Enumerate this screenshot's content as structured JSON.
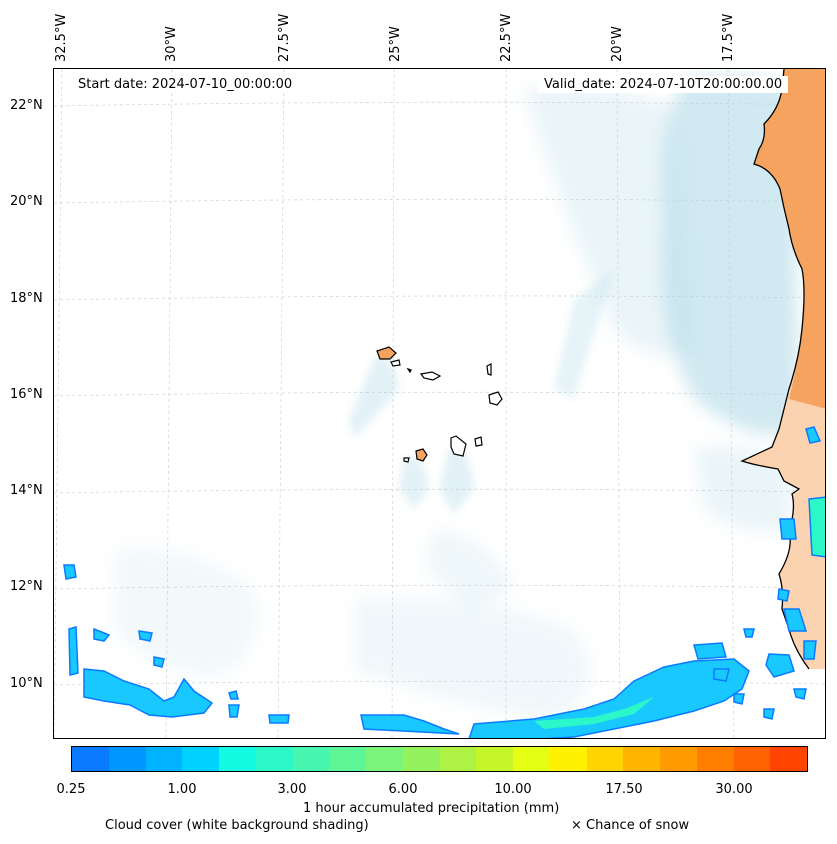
{
  "map": {
    "start_date": "Start date: 2024-07-10_00:00:00",
    "valid_date": "Valid_date: 2024-07-10T20:00:00.00",
    "longitude_labels": [
      "32.5°W",
      "30°W",
      "27.5°W",
      "25°W",
      "22.5°W",
      "20°W",
      "17.5°W"
    ],
    "latitude_labels": [
      "22°N",
      "20°N",
      "18°N",
      "16°N",
      "14°N",
      "12°N",
      "10°N"
    ]
  },
  "colorbar": {
    "tick_labels": [
      "0.25",
      "1.00",
      "3.00",
      "6.00",
      "10.00",
      "17.50",
      "30.00"
    ],
    "colors": [
      "#0a7bff",
      "#0096ff",
      "#00b2ff",
      "#00d2ff",
      "#14fbe4",
      "#2cf7c8",
      "#46f5ae",
      "#5ef597",
      "#7af57a",
      "#93f25e",
      "#adf244",
      "#c6f52a",
      "#e4ff14",
      "#fff200",
      "#ffd400",
      "#ffb400",
      "#ff9a00",
      "#ff7e00",
      "#ff6200",
      "#ff4400"
    ],
    "title": "1 hour accumulated precipitation (mm)"
  },
  "legend": {
    "cloud_cover": "Cloud cover (white background shading)",
    "snow": "× Chance of snow"
  },
  "colors": {
    "land": "#f5a35f",
    "land_light": "#fbd3b0",
    "cloud": "#add8e6",
    "precip_edge": "#0a7bff",
    "precip_mid": "#19c8ff",
    "precip_high": "#2cf7c8"
  }
}
